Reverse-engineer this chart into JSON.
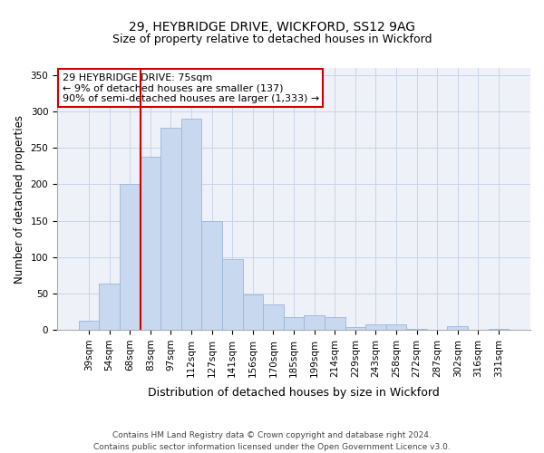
{
  "title": "29, HEYBRIDGE DRIVE, WICKFORD, SS12 9AG",
  "subtitle": "Size of property relative to detached houses in Wickford",
  "xlabel": "Distribution of detached houses by size in Wickford",
  "ylabel": "Number of detached properties",
  "bar_labels": [
    "39sqm",
    "54sqm",
    "68sqm",
    "83sqm",
    "97sqm",
    "112sqm",
    "127sqm",
    "141sqm",
    "156sqm",
    "170sqm",
    "185sqm",
    "199sqm",
    "214sqm",
    "229sqm",
    "243sqm",
    "258sqm",
    "272sqm",
    "287sqm",
    "302sqm",
    "316sqm",
    "331sqm"
  ],
  "bar_values": [
    13,
    63,
    200,
    238,
    278,
    290,
    150,
    97,
    49,
    35,
    18,
    20,
    18,
    4,
    8,
    7,
    1,
    0,
    5,
    0,
    1
  ],
  "bar_color": "#c8d9ef",
  "bar_edge_color": "#9bb5d8",
  "vline_color": "#cc0000",
  "vline_pos": 2.5,
  "ylim": [
    0,
    360
  ],
  "yticks": [
    0,
    50,
    100,
    150,
    200,
    250,
    300,
    350
  ],
  "annotation_title": "29 HEYBRIDGE DRIVE: 75sqm",
  "annotation_line1": "← 9% of detached houses are smaller (137)",
  "annotation_line2": "90% of semi-detached houses are larger (1,333) →",
  "annotation_box_color": "#ffffff",
  "annotation_box_edge": "#cc0000",
  "grid_color": "#c8d4e8",
  "footer1": "Contains HM Land Registry data © Crown copyright and database right 2024.",
  "footer2": "Contains public sector information licensed under the Open Government Licence v3.0.",
  "title_fontsize": 10,
  "subtitle_fontsize": 9,
  "xlabel_fontsize": 9,
  "ylabel_fontsize": 8.5,
  "tick_fontsize": 7.5,
  "annotation_title_fontsize": 8.5,
  "annotation_body_fontsize": 8,
  "footer_fontsize": 6.5,
  "plot_bg_color": "#eef2f8"
}
